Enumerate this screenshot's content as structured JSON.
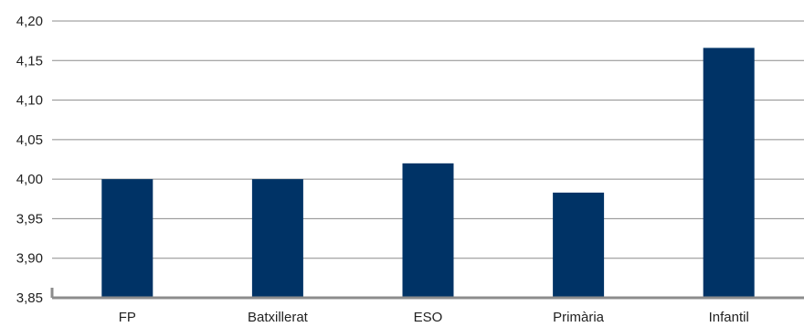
{
  "chart_data": {
    "type": "bar",
    "categories": [
      "FP",
      "Batxillerat",
      "ESO",
      "Primària",
      "Infantil"
    ],
    "values": [
      4.0,
      4.0,
      4.02,
      3.983,
      4.166
    ],
    "yticks": [
      "3,85",
      "3,90",
      "3,95",
      "4,00",
      "4,05",
      "4,10",
      "4,15",
      "4,20"
    ],
    "ylim": [
      3.85,
      4.2
    ],
    "grid": true,
    "legend": "none",
    "colors": {
      "bar": "#003366",
      "grid": "#8c8c8c",
      "axis": "#8c8c8c"
    }
  }
}
